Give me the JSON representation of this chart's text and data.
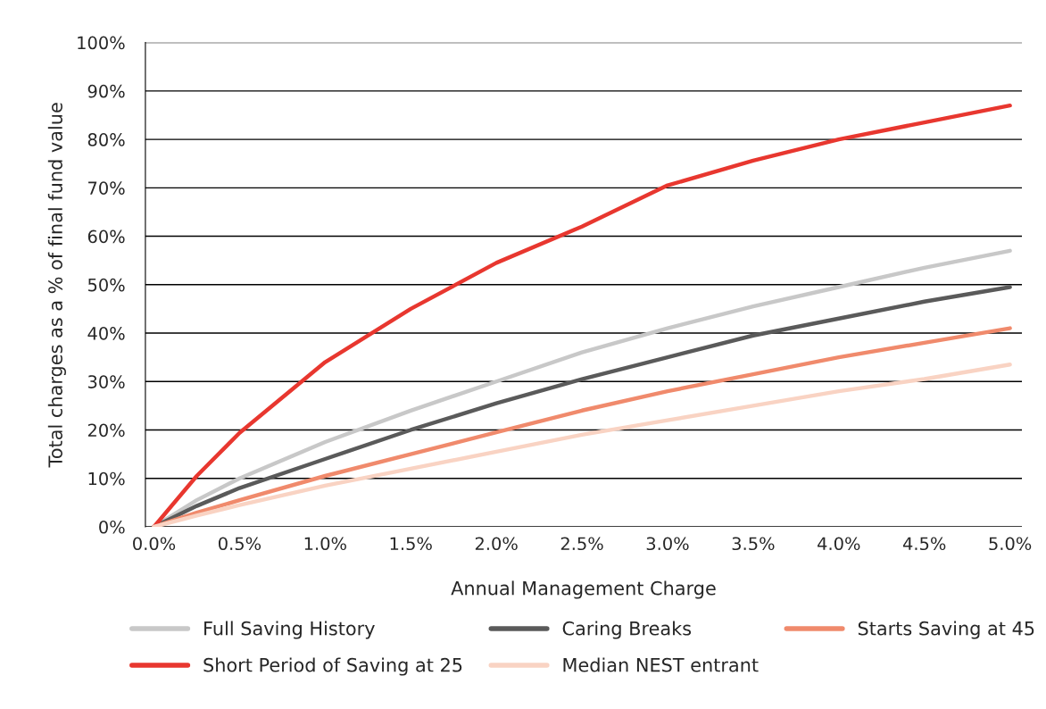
{
  "chart_data": {
    "type": "line",
    "xlabel": "Annual Management Charge",
    "ylabel": "Total charges as a % of final fund value",
    "x": [
      0,
      0.25,
      0.5,
      1.0,
      1.5,
      2.0,
      2.5,
      3.0,
      3.5,
      4.0,
      4.5,
      5.0
    ],
    "series": [
      {
        "name": "Full Saving History",
        "color": "#c8c8c8",
        "values": [
          0,
          5.5,
          10,
          17.5,
          24,
          30,
          36,
          41,
          45.5,
          49.5,
          53.5,
          57
        ]
      },
      {
        "name": "Caring Breaks",
        "color": "#5a5a5a",
        "values": [
          0,
          4.3,
          8,
          14,
          20,
          25.5,
          30.5,
          35,
          39.5,
          43,
          46.5,
          49.5
        ]
      },
      {
        "name": "Starts Saving at 45",
        "color": "#f08a6c",
        "values": [
          0,
          2.9,
          5.5,
          10.5,
          15,
          19.5,
          24,
          28,
          31.5,
          35,
          38,
          41
        ]
      },
      {
        "name": "Short Period of Saving at 25",
        "color": "#e8372f",
        "values": [
          0,
          10.5,
          19.4,
          34,
          45,
          54.5,
          62,
          70.5,
          75.6,
          80,
          83.5,
          87
        ]
      },
      {
        "name": "Median NEST entrant",
        "color": "#f9d3c3",
        "values": [
          0,
          2.3,
          4.5,
          8.5,
          12,
          15.5,
          19,
          22,
          25,
          28,
          30.5,
          33.5
        ]
      }
    ],
    "xlim": [
      -0.05,
      5.07
    ],
    "ylim": [
      0,
      100
    ],
    "xticks": [
      {
        "value": 0,
        "label": "0.0%"
      },
      {
        "value": 0.5,
        "label": "0.5%"
      },
      {
        "value": 1.0,
        "label": "1.0%"
      },
      {
        "value": 1.5,
        "label": "1.5%"
      },
      {
        "value": 2.0,
        "label": "2.0%"
      },
      {
        "value": 2.5,
        "label": "2.5%"
      },
      {
        "value": 3.0,
        "label": "3.0%"
      },
      {
        "value": 3.5,
        "label": "3.5%"
      },
      {
        "value": 4.0,
        "label": "4.0%"
      },
      {
        "value": 4.5,
        "label": "4.5%"
      },
      {
        "value": 5.0,
        "label": "5.0%"
      }
    ],
    "yticks": [
      {
        "value": 0,
        "label": "0%"
      },
      {
        "value": 10,
        "label": "10%"
      },
      {
        "value": 20,
        "label": "20%"
      },
      {
        "value": 30,
        "label": "30%"
      },
      {
        "value": 40,
        "label": "40%"
      },
      {
        "value": 50,
        "label": "50%"
      },
      {
        "value": 60,
        "label": "60%"
      },
      {
        "value": 70,
        "label": "70%"
      },
      {
        "value": 80,
        "label": "80%"
      },
      {
        "value": 90,
        "label": "90%"
      },
      {
        "value": 100,
        "label": "100%"
      }
    ],
    "grid": "y",
    "legend": "bottom",
    "marker": "none",
    "line_style": "solid"
  }
}
